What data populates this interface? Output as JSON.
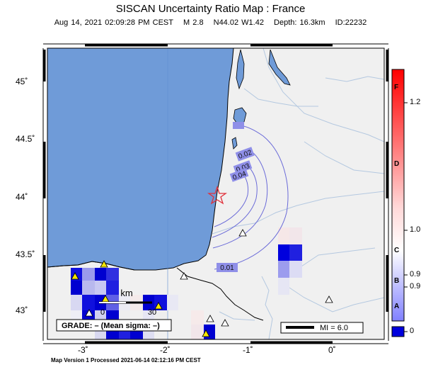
{
  "title": "SISCAN Uncertainty Ratio Map : France",
  "event": {
    "datetime": "Aug 14, 2021 02:09:28 PM CEST",
    "magnitude": "M 2.8",
    "location": "N44.02 W1.42",
    "depth": "Depth: 16.3km",
    "id": "ID:22232"
  },
  "footer": "Map Version 1 Processed 2021-06-14 02:12:16 PM CEST",
  "axes": {
    "lat_labels": [
      "45˚",
      "44.5˚",
      "44˚",
      "43.5˚",
      "43˚"
    ],
    "lon_labels": [
      "-3˚",
      "-2˚",
      "-1˚",
      "0˚"
    ]
  },
  "contours": [
    {
      "label": "0.01"
    },
    {
      "label": "0.02"
    },
    {
      "label": "0.03"
    },
    {
      "label": "0.04"
    }
  ],
  "grade_box": "GRADE: – (Mean sigma: –)",
  "scale_bar": {
    "label": "km",
    "ticks": [
      "0",
      "30"
    ]
  },
  "legend": {
    "mi_label": "MI = 6.0"
  },
  "colorbar": {
    "letters": [
      "F",
      "D",
      "C",
      "B",
      "A"
    ],
    "values": [
      "1.2",
      "1.0",
      "0.9",
      "0.9",
      "0"
    ]
  },
  "colors": {
    "sea": "#6f9bd8",
    "land": "#f0f0f0",
    "contour": "#6a6ad8",
    "cell_strong": "#0000dd",
    "epicenter": "#e0303a"
  }
}
